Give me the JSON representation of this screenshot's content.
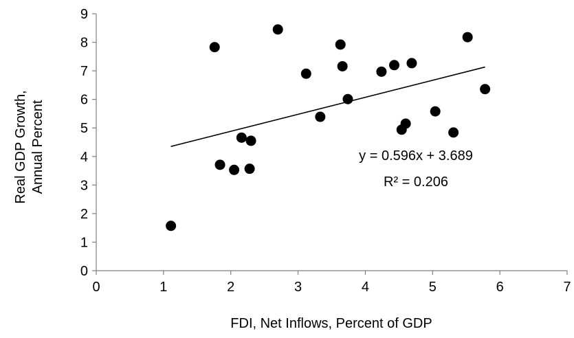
{
  "chart_data": {
    "type": "scatter",
    "xlabel": "FDI, Net Inflows, Percent of GDP",
    "ylabel": "Real GDP Growth, Annual Percent",
    "ylabel_lines": [
      "Real GDP Growth,",
      "Annual Percent"
    ],
    "xlim": [
      0,
      7
    ],
    "ylim": [
      0,
      9
    ],
    "x_ticks": [
      0,
      1,
      2,
      3,
      4,
      5,
      6,
      7
    ],
    "y_ticks": [
      0,
      1,
      2,
      3,
      4,
      5,
      6,
      7,
      8,
      9
    ],
    "grid": false,
    "legend": "none",
    "points": [
      {
        "x": 1.11,
        "y": 1.57
      },
      {
        "x": 1.76,
        "y": 7.83
      },
      {
        "x": 1.84,
        "y": 3.71
      },
      {
        "x": 2.05,
        "y": 3.53
      },
      {
        "x": 2.16,
        "y": 4.66
      },
      {
        "x": 2.28,
        "y": 3.57
      },
      {
        "x": 2.3,
        "y": 4.55
      },
      {
        "x": 2.7,
        "y": 8.45
      },
      {
        "x": 3.12,
        "y": 6.9
      },
      {
        "x": 3.33,
        "y": 5.39
      },
      {
        "x": 3.63,
        "y": 7.92
      },
      {
        "x": 3.66,
        "y": 7.16
      },
      {
        "x": 3.74,
        "y": 6.01
      },
      {
        "x": 4.24,
        "y": 6.97
      },
      {
        "x": 4.43,
        "y": 7.2
      },
      {
        "x": 4.54,
        "y": 4.94
      },
      {
        "x": 4.6,
        "y": 5.15
      },
      {
        "x": 4.69,
        "y": 7.27
      },
      {
        "x": 5.04,
        "y": 5.58
      },
      {
        "x": 5.31,
        "y": 4.84
      },
      {
        "x": 5.52,
        "y": 8.18
      },
      {
        "x": 5.78,
        "y": 6.36
      }
    ],
    "trendline": {
      "slope": 0.596,
      "intercept": 3.689,
      "x_range": [
        1.11,
        5.78
      ],
      "equation_text": "y = 0.596x + 3.689",
      "r2_text": "R² = 0.206"
    },
    "colors": {
      "marker": "#000000",
      "trendline": "#000000",
      "axis": "#7f7f7f"
    }
  }
}
